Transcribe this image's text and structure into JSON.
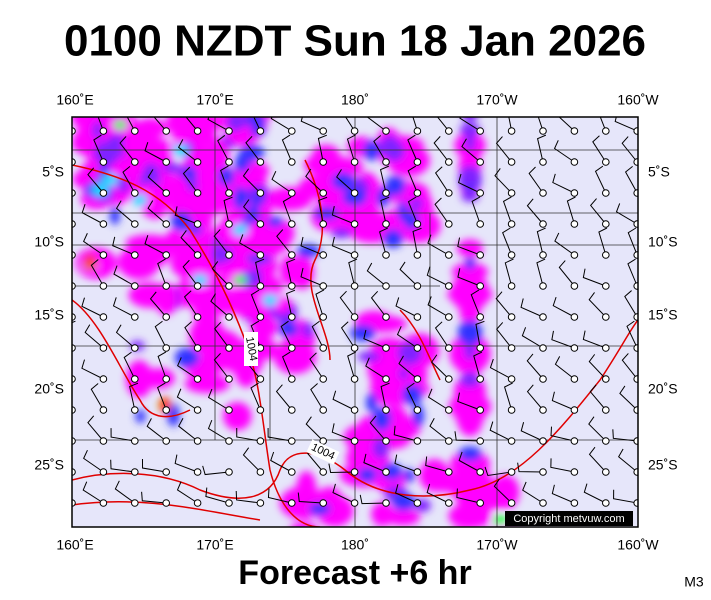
{
  "header": {
    "title": "0100 NZDT Sun 18 Jan 2026"
  },
  "map": {
    "longitude_labels": [
      "160˚E",
      "170˚E",
      "180˚",
      "170˚W",
      "160˚W"
    ],
    "latitude_labels": [
      "5˚S",
      "10˚S",
      "15˚S",
      "20˚S",
      "25˚S"
    ],
    "isobar_labels": [
      "1004",
      "1004"
    ],
    "copyright": "Copyright metvuw.com"
  },
  "footer": {
    "forecast": "Forecast +6 hr",
    "model": "M3"
  }
}
